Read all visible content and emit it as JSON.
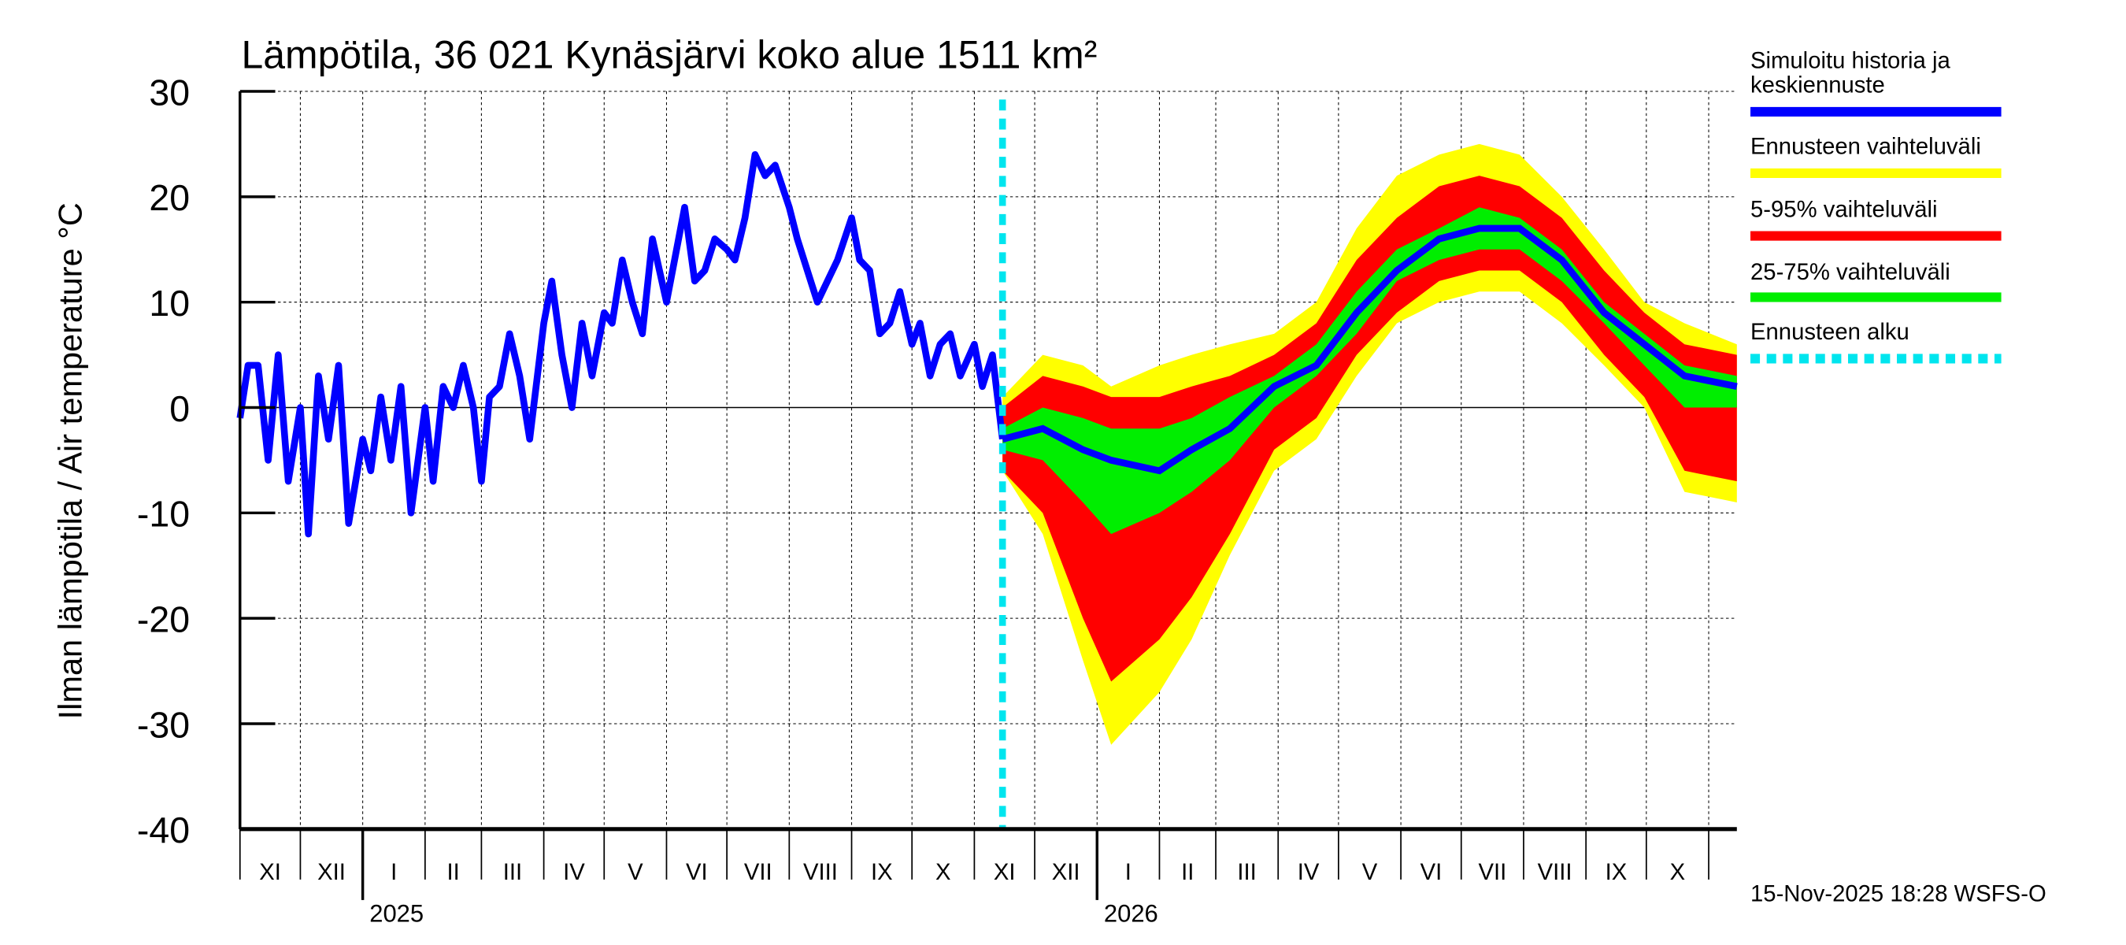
{
  "chart_data": {
    "type": "area",
    "title": "Lämpötila, 36 021 Kynäsjärvi koko alue 1511 km²",
    "ylabel": "Ilman lämpötila / Air temperature   °C",
    "ylim": [
      -40,
      30
    ],
    "yticks": [
      30,
      20,
      10,
      0,
      -10,
      -20,
      -30,
      -40
    ],
    "xlim": [
      "2024-11-01",
      "2026-11-15"
    ],
    "grid": true,
    "legend_position": "right",
    "month_labels": [
      "XI",
      "XII",
      "I",
      "II",
      "III",
      "IV",
      "V",
      "VI",
      "VII",
      "VIII",
      "IX",
      "X",
      "XI",
      "XII",
      "I",
      "II",
      "III",
      "IV",
      "V",
      "VI",
      "VII",
      "VIII",
      "IX",
      "X"
    ],
    "year_labels": [
      {
        "label": "2025",
        "date": "2025-01-01"
      },
      {
        "label": "2026",
        "date": "2026-01-01"
      }
    ],
    "forecast_start": "2025-11-15",
    "timestamp": "15-Nov-2025 18:28 WSFS-O",
    "legend": [
      {
        "label": "Simuloitu historia ja",
        "label2": "keskiennuste",
        "color": "#0000ff",
        "style": "solid"
      },
      {
        "label": "Ennusteen vaihteluväli",
        "color": "#ffff00",
        "style": "solid"
      },
      {
        "label": "5-95% vaihteluväli",
        "color": "#ff0000",
        "style": "solid"
      },
      {
        "label": "25-75% vaihteluväli",
        "color": "#00ee00",
        "style": "solid"
      },
      {
        "label": "Ennusteen alku",
        "color": "#00e5ee",
        "style": "dashed"
      }
    ],
    "history": {
      "dates": [
        "2024-11-01",
        "2024-11-05",
        "2024-11-10",
        "2024-11-15",
        "2024-11-20",
        "2024-11-25",
        "2024-12-01",
        "2024-12-05",
        "2024-12-10",
        "2024-12-15",
        "2024-12-20",
        "2024-12-25",
        "2025-01-01",
        "2025-01-05",
        "2025-01-10",
        "2025-01-15",
        "2025-01-20",
        "2025-01-25",
        "2025-02-01",
        "2025-02-05",
        "2025-02-10",
        "2025-02-15",
        "2025-02-20",
        "2025-02-25",
        "2025-03-01",
        "2025-03-05",
        "2025-03-10",
        "2025-03-15",
        "2025-03-20",
        "2025-03-25",
        "2025-04-01",
        "2025-04-05",
        "2025-04-10",
        "2025-04-15",
        "2025-04-20",
        "2025-04-25",
        "2025-05-01",
        "2025-05-05",
        "2025-05-10",
        "2025-05-15",
        "2025-05-20",
        "2025-05-25",
        "2025-06-01",
        "2025-06-05",
        "2025-06-10",
        "2025-06-15",
        "2025-06-20",
        "2025-06-25",
        "2025-07-01",
        "2025-07-05",
        "2025-07-10",
        "2025-07-15",
        "2025-07-20",
        "2025-07-25",
        "2025-08-01",
        "2025-08-05",
        "2025-08-10",
        "2025-08-15",
        "2025-08-20",
        "2025-08-25",
        "2025-09-01",
        "2025-09-05",
        "2025-09-10",
        "2025-09-15",
        "2025-09-20",
        "2025-09-25",
        "2025-10-01",
        "2025-10-05",
        "2025-10-10",
        "2025-10-15",
        "2025-10-20",
        "2025-10-25",
        "2025-11-01",
        "2025-11-05",
        "2025-11-10",
        "2025-11-15"
      ],
      "values": [
        -1,
        4,
        4,
        -5,
        5,
        -7,
        0,
        -12,
        3,
        -3,
        4,
        -11,
        -3,
        -6,
        1,
        -5,
        2,
        -10,
        0,
        -7,
        2,
        0,
        4,
        0,
        -7,
        1,
        2,
        7,
        3,
        -3,
        8,
        12,
        5,
        0,
        8,
        3,
        9,
        8,
        14,
        10,
        7,
        16,
        10,
        14,
        19,
        12,
        13,
        16,
        15,
        14,
        18,
        24,
        22,
        23,
        19,
        16,
        13,
        10,
        12,
        14,
        18,
        14,
        13,
        7,
        8,
        11,
        6,
        8,
        3,
        6,
        7,
        3,
        6,
        2,
        5,
        -3
      ]
    },
    "forecast": {
      "dates": [
        "2025-11-15",
        "2025-12-05",
        "2025-12-25",
        "2026-01-08",
        "2026-02-01",
        "2026-02-17",
        "2026-03-08",
        "2026-03-30",
        "2026-04-20",
        "2026-05-10",
        "2026-05-30",
        "2026-06-20",
        "2026-07-10",
        "2026-07-30",
        "2026-08-20",
        "2026-09-10",
        "2026-09-30",
        "2026-10-20",
        "2026-11-15"
      ],
      "min": [
        -6,
        -12,
        -24,
        -32,
        -27,
        -22,
        -14,
        -6,
        -3,
        3,
        8,
        10,
        11,
        11,
        8,
        4,
        0,
        -8,
        -9
      ],
      "p5": [
        -6,
        -10,
        -20,
        -26,
        -22,
        -18,
        -12,
        -4,
        -1,
        5,
        9,
        12,
        13,
        13,
        10,
        5,
        1,
        -6,
        -7
      ],
      "p25": [
        -4,
        -5,
        -9,
        -12,
        -10,
        -8,
        -5,
        0,
        3,
        7,
        12,
        14,
        15,
        15,
        12,
        8,
        4,
        0,
        0
      ],
      "median": [
        -3,
        -2,
        -4,
        -5,
        -6,
        -4,
        -2,
        2,
        4,
        9,
        13,
        16,
        17,
        17,
        14,
        9,
        6,
        3,
        2
      ],
      "p75": [
        -2,
        0,
        -1,
        -2,
        -2,
        -1,
        1,
        3,
        6,
        11,
        15,
        17,
        19,
        18,
        15,
        10,
        7,
        4,
        3
      ],
      "p95": [
        0,
        3,
        2,
        1,
        1,
        2,
        3,
        5,
        8,
        14,
        18,
        21,
        22,
        21,
        18,
        13,
        9,
        6,
        5
      ],
      "max": [
        1,
        5,
        4,
        2,
        4,
        5,
        6,
        7,
        10,
        17,
        22,
        24,
        25,
        24,
        20,
        15,
        10,
        8,
        6
      ]
    }
  }
}
